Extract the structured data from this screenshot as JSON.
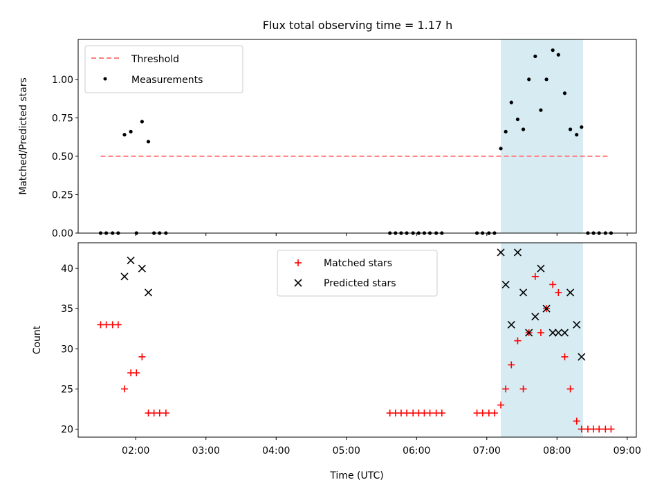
{
  "title": "Flux total observing time = 1.17 h",
  "colors": {
    "threshold": "#ff7f7f",
    "measurements": "#000000",
    "matched": "#ff0000",
    "predicted": "#000000",
    "span": "#add8e6"
  },
  "chart_data": [
    {
      "type": "scatter",
      "ylabel": "Matched/Predicted stars",
      "xlim": [
        1.18,
        9.13
      ],
      "ylim": [
        0.0,
        1.26
      ],
      "yticks": [
        "0.00",
        "0.25",
        "0.50",
        "0.75",
        "1.00"
      ],
      "shaded_span": {
        "from": 7.2,
        "to": 8.37
      },
      "legend_position": "top-left",
      "series": [
        {
          "name": "Threshold",
          "kind": "dashed-line",
          "x": [
            1.5,
            8.76
          ],
          "y": [
            0.5,
            0.5
          ]
        },
        {
          "name": "Measurements",
          "kind": "dots",
          "x": [
            1.5,
            1.58,
            1.67,
            1.75,
            1.84,
            1.93,
            2.01,
            2.09,
            2.18,
            2.26,
            2.34,
            2.43,
            5.62,
            5.7,
            5.78,
            5.86,
            5.95,
            6.03,
            6.11,
            6.19,
            6.28,
            6.36,
            6.86,
            6.94,
            7.03,
            7.11,
            7.2,
            7.27,
            7.35,
            7.44,
            7.52,
            7.6,
            7.69,
            7.77,
            7.85,
            7.94,
            8.02,
            8.11,
            8.19,
            8.28,
            8.35,
            8.44,
            8.52,
            8.6,
            8.69,
            8.77
          ],
          "y": [
            0.0,
            0.0,
            0.0,
            0.0,
            0.64,
            0.66,
            0.0,
            0.725,
            0.595,
            0.0,
            0.0,
            0.0,
            0.0,
            0.0,
            0.0,
            0.0,
            0.0,
            0.0,
            0.0,
            0.0,
            0.0,
            0.0,
            0.0,
            0.0,
            0.0,
            0.0,
            0.55,
            0.66,
            0.85,
            0.74,
            0.675,
            1.0,
            1.15,
            0.8,
            1.0,
            1.19,
            1.16,
            0.91,
            0.675,
            0.64,
            0.69,
            0.0,
            0.0,
            0.0,
            0.0,
            0.0
          ]
        }
      ]
    },
    {
      "type": "scatter",
      "xlabel": "Time (UTC)",
      "ylabel": "Count",
      "xlim": [
        1.18,
        9.13
      ],
      "ylim": [
        19,
        43.2
      ],
      "xticks": [
        {
          "v": 2,
          "label": "02:00"
        },
        {
          "v": 3,
          "label": "03:00"
        },
        {
          "v": 4,
          "label": "04:00"
        },
        {
          "v": 5,
          "label": "05:00"
        },
        {
          "v": 6,
          "label": "06:00"
        },
        {
          "v": 7,
          "label": "07:00"
        },
        {
          "v": 8,
          "label": "08:00"
        },
        {
          "v": 9,
          "label": "09:00"
        }
      ],
      "yticks": [
        "20",
        "25",
        "30",
        "35",
        "40"
      ],
      "shaded_span": {
        "from": 7.2,
        "to": 8.37
      },
      "legend_position": "top-center",
      "series": [
        {
          "name": "Matched stars",
          "kind": "plus",
          "x": [
            1.5,
            1.58,
            1.67,
            1.75,
            1.84,
            1.93,
            2.01,
            2.09,
            2.18,
            2.26,
            2.34,
            2.43,
            5.62,
            5.7,
            5.78,
            5.86,
            5.95,
            6.03,
            6.11,
            6.19,
            6.28,
            6.36,
            6.86,
            6.94,
            7.03,
            7.11,
            7.2,
            7.27,
            7.35,
            7.44,
            7.52,
            7.6,
            7.69,
            7.77,
            7.85,
            7.94,
            8.02,
            8.11,
            8.19,
            8.28,
            8.35,
            8.44,
            8.52,
            8.6,
            8.69,
            8.77
          ],
          "y": [
            33,
            33,
            33,
            33,
            25,
            27,
            27,
            29,
            22,
            22,
            22,
            22,
            22,
            22,
            22,
            22,
            22,
            22,
            22,
            22,
            22,
            22,
            22,
            22,
            22,
            22,
            23,
            25,
            28,
            31,
            25,
            32,
            39,
            32,
            35,
            38,
            37,
            29,
            25,
            21,
            20,
            20,
            20,
            20,
            20,
            20
          ]
        },
        {
          "name": "Predicted stars",
          "kind": "cross",
          "x": [
            1.84,
            1.93,
            2.09,
            2.18,
            7.2,
            7.27,
            7.35,
            7.44,
            7.52,
            7.6,
            7.69,
            7.77,
            7.85,
            7.94,
            8.02,
            8.11,
            8.19,
            8.28,
            8.35
          ],
          "y": [
            39,
            41,
            40,
            37,
            42,
            38,
            33,
            42,
            37,
            32,
            34,
            40,
            35,
            32,
            32,
            32,
            37,
            33,
            29
          ]
        }
      ]
    }
  ]
}
